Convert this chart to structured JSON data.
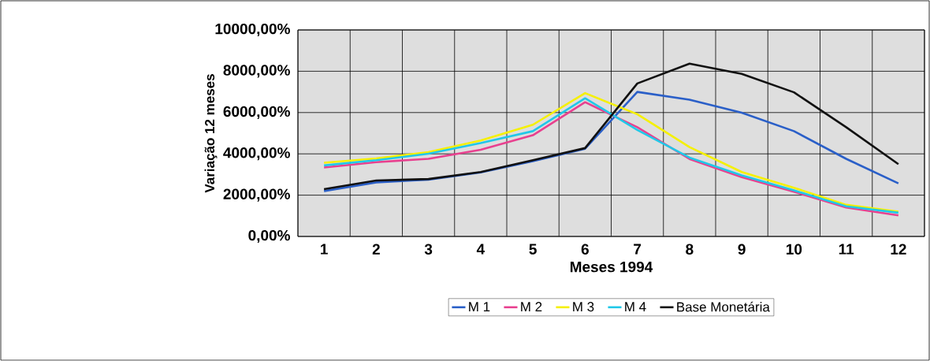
{
  "chart_data": {
    "type": "line",
    "xlabel": "Meses 1994",
    "ylabel": "Variação 12 meses",
    "categories": [
      "1",
      "2",
      "3",
      "4",
      "5",
      "6",
      "7",
      "8",
      "9",
      "10",
      "11",
      "12"
    ],
    "series": [
      {
        "name": "M 1",
        "color": "#2a5fc8",
        "values": [
          2200,
          2620,
          2750,
          3100,
          3650,
          4250,
          7000,
          6620,
          5990,
          5100,
          3760,
          2570
        ]
      },
      {
        "name": "M 2",
        "color": "#e8408f",
        "values": [
          3340,
          3600,
          3760,
          4200,
          4900,
          6500,
          5290,
          3750,
          2870,
          2170,
          1400,
          1020
        ]
      },
      {
        "name": "M 3",
        "color": "#f5f000",
        "values": [
          3570,
          3780,
          4080,
          4650,
          5410,
          6940,
          5920,
          4330,
          3120,
          2360,
          1530,
          1200
        ]
      },
      {
        "name": "M 4",
        "color": "#20c8e8",
        "values": [
          3440,
          3690,
          4010,
          4520,
          5100,
          6690,
          5160,
          3820,
          2960,
          2230,
          1460,
          1150
        ]
      },
      {
        "name": "Base Monetária",
        "color": "#111111",
        "values": [
          2290,
          2710,
          2780,
          3120,
          3690,
          4280,
          7410,
          8370,
          7870,
          6980,
          5290,
          3500
        ]
      }
    ],
    "ylim": [
      0,
      10000
    ],
    "yticks": [
      {
        "value": 0,
        "label": "0,00%"
      },
      {
        "value": 2000,
        "label": "2000,00%"
      },
      {
        "value": 4000,
        "label": "4000,00%"
      },
      {
        "value": 6000,
        "label": "6000,00%"
      },
      {
        "value": 8000,
        "label": "8000,00%"
      },
      {
        "value": 10000,
        "label": "10000,00%"
      }
    ],
    "grid": true,
    "legend": "bottom",
    "marker": "none",
    "line_style": "solid"
  }
}
